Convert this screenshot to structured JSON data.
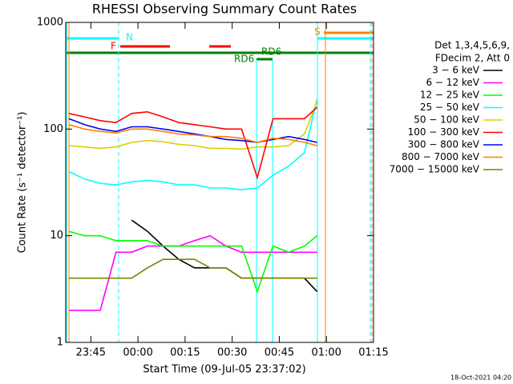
{
  "chart_data": {
    "type": "line",
    "title": "RHESSI Observing Summary Count Rates",
    "x_label": "Start Time (09-Jul-05 23:37:02)",
    "y_label": "Count Rate (s⁻¹ detector⁻¹)",
    "legend_header": [
      "Det 1,3,4,5,6,9,",
      "FDecim 2, Att 0"
    ],
    "footer": "18-Oct-2021 04:20",
    "flags": [
      "N",
      "F",
      "RD6",
      "RD6",
      "S"
    ],
    "log_y": true,
    "xlim": [
      -23,
      75
    ],
    "xticks": [
      {
        "value": -15,
        "label": "23:45"
      },
      {
        "value": 0,
        "label": "00:00"
      },
      {
        "value": 15,
        "label": "00:15"
      },
      {
        "value": 30,
        "label": "00:30"
      },
      {
        "value": 45,
        "label": "00:45"
      },
      {
        "value": 60,
        "label": "01:00"
      },
      {
        "value": 75,
        "label": "01:15"
      }
    ],
    "ylim": [
      1,
      1000
    ],
    "yticks": [
      1,
      10,
      100,
      1000
    ],
    "x": [
      -22,
      -17,
      -12,
      -7,
      -2,
      3,
      8,
      13,
      18,
      23,
      28,
      33,
      38,
      43,
      48,
      53,
      57
    ],
    "series": [
      {
        "name": "3 − 6 keV",
        "color": "#000000",
        "values": [
          null,
          null,
          null,
          null,
          14,
          11,
          8,
          6,
          5,
          5,
          5,
          4,
          4,
          4,
          4,
          4,
          3
        ]
      },
      {
        "name": "6 − 12 keV",
        "color": "#ff00ff",
        "values": [
          2,
          2,
          2,
          7,
          7,
          8,
          8,
          8,
          9,
          10,
          8,
          7,
          7,
          7,
          7,
          7,
          7
        ]
      },
      {
        "name": "12 − 25 keV",
        "color": "#00ff00",
        "values": [
          11,
          10,
          10,
          9,
          9,
          9,
          8,
          8,
          8,
          8,
          8,
          8,
          3,
          8,
          7,
          8,
          10
        ]
      },
      {
        "name": "25 − 50 keV",
        "color": "#00ffff",
        "values": [
          40,
          34,
          31,
          30,
          32,
          33,
          32,
          30,
          30,
          28,
          28,
          27,
          28,
          37,
          45,
          60,
          190
        ]
      },
      {
        "name": "50 − 100 keV",
        "color": "#d8d000",
        "values": [
          70,
          68,
          66,
          68,
          75,
          78,
          76,
          72,
          70,
          66,
          66,
          65,
          68,
          68,
          70,
          90,
          180
        ]
      },
      {
        "name": "100 − 300 keV",
        "color": "#ff0000",
        "values": [
          140,
          130,
          120,
          115,
          140,
          145,
          130,
          115,
          110,
          105,
          100,
          100,
          35,
          125,
          125,
          125,
          160
        ]
      },
      {
        "name": "300 − 800 keV",
        "color": "#0000ff",
        "values": [
          125,
          110,
          100,
          95,
          105,
          105,
          100,
          95,
          90,
          85,
          80,
          78,
          75,
          80,
          85,
          80,
          75
        ]
      },
      {
        "name": "800 − 7000 keV",
        "color": "#ff8000",
        "values": [
          110,
          100,
          95,
          92,
          100,
          100,
          95,
          90,
          88,
          85,
          85,
          82,
          75,
          82,
          80,
          75,
          70
        ]
      },
      {
        "name": "7000 − 15000 keV",
        "color": "#808000",
        "values": [
          4,
          4,
          4,
          4,
          4,
          5,
          6,
          6,
          6,
          5,
          5,
          4,
          4,
          4,
          4,
          4,
          4
        ]
      }
    ]
  }
}
